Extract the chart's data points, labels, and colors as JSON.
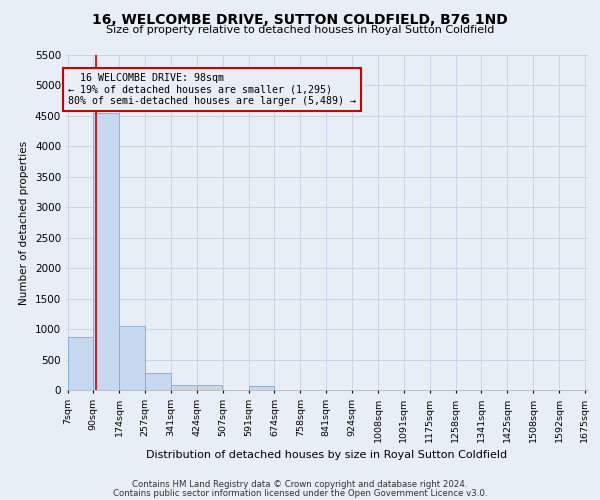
{
  "title": "16, WELCOMBE DRIVE, SUTTON COLDFIELD, B76 1ND",
  "subtitle": "Size of property relative to detached houses in Royal Sutton Coldfield",
  "xlabel": "Distribution of detached houses by size in Royal Sutton Coldfield",
  "ylabel": "Number of detached properties",
  "footer_line1": "Contains HM Land Registry data © Crown copyright and database right 2024.",
  "footer_line2": "Contains public sector information licensed under the Open Government Licence v3.0.",
  "annotation_title": "16 WELCOMBE DRIVE: 98sqm",
  "annotation_line1": "← 19% of detached houses are smaller (1,295)",
  "annotation_line2": "80% of semi-detached houses are larger (5,489) →",
  "property_size": 98,
  "bin_edges": [
    7,
    90,
    174,
    257,
    341,
    424,
    507,
    591,
    674,
    758,
    841,
    924,
    1008,
    1091,
    1175,
    1258,
    1341,
    1425,
    1508,
    1592,
    1675
  ],
  "bin_labels": [
    "7sqm",
    "90sqm",
    "174sqm",
    "257sqm",
    "341sqm",
    "424sqm",
    "507sqm",
    "591sqm",
    "674sqm",
    "758sqm",
    "841sqm",
    "924sqm",
    "1008sqm",
    "1091sqm",
    "1175sqm",
    "1258sqm",
    "1341sqm",
    "1425sqm",
    "1508sqm",
    "1592sqm",
    "1675sqm"
  ],
  "bar_heights": [
    870,
    4550,
    1055,
    275,
    90,
    75,
    0,
    65,
    0,
    0,
    0,
    0,
    0,
    0,
    0,
    0,
    0,
    0,
    0,
    0
  ],
  "bar_color": "#c5d8ef",
  "bar_edge_color": "#7aadd4",
  "red_line_color": "#cc0000",
  "annotation_box_color": "#cc0000",
  "grid_color": "#ccd5e3",
  "background_color": "#e8eef5",
  "ylim": [
    0,
    5500
  ],
  "yticks": [
    0,
    500,
    1000,
    1500,
    2000,
    2500,
    3000,
    3500,
    4000,
    4500,
    5000,
    5500
  ]
}
